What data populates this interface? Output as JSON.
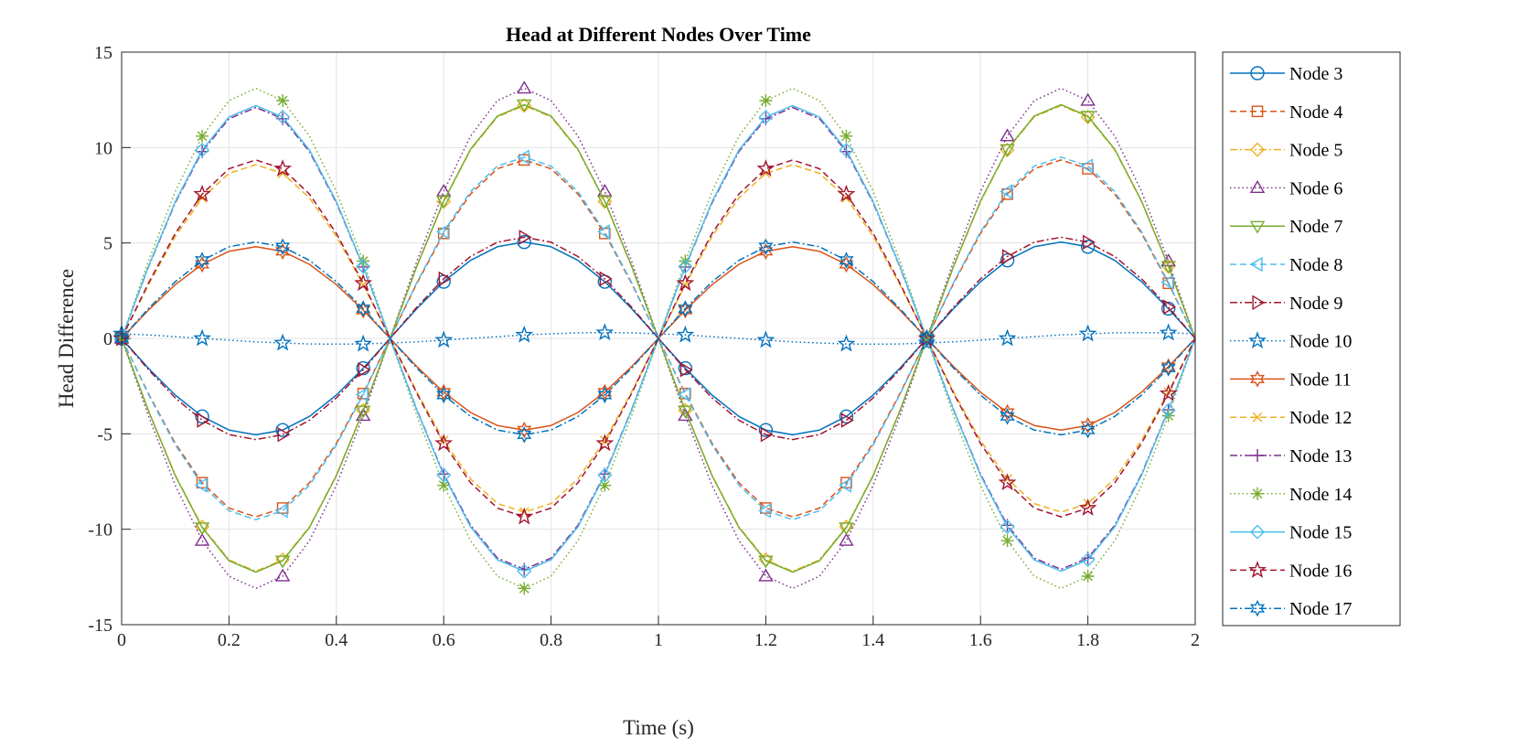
{
  "chart_data": {
    "type": "line",
    "title": "Head at Different Nodes Over Time",
    "xlabel": "Time (s)",
    "ylabel": "Head Difference",
    "xlim": [
      0,
      2
    ],
    "ylim": [
      -15,
      15
    ],
    "xticks": [
      "0",
      "0.2",
      "0.4",
      "0.6",
      "0.8",
      "1",
      "1.2",
      "1.4",
      "1.6",
      "1.8",
      "2"
    ],
    "yticks": [
      "-15",
      "-10",
      "-5",
      "0",
      "5",
      "10",
      "15"
    ],
    "grid": true,
    "legend_position": "outside-right",
    "marker_spacing": 0.15,
    "x": [
      0,
      0.05,
      0.1,
      0.15,
      0.2,
      0.25,
      0.3,
      0.35,
      0.4,
      0.45,
      0.5,
      0.55,
      0.6,
      0.65,
      0.7,
      0.75,
      0.8,
      0.85,
      0.9,
      0.95,
      1,
      1.05,
      1.1,
      1.15,
      1.2,
      1.25,
      1.3,
      1.35,
      1.4,
      1.45,
      1.5,
      1.55,
      1.6,
      1.65,
      1.7,
      1.75,
      1.8,
      1.85,
      1.9,
      1.95,
      2
    ],
    "series": [
      {
        "name": "Node 3",
        "color": "#0072BD",
        "line": "solid",
        "marker": "circle",
        "values": [
          0,
          -1.56,
          -2.97,
          -4.09,
          -4.8,
          -5.05,
          -4.8,
          -4.09,
          -2.97,
          -1.56,
          0,
          1.56,
          2.97,
          4.09,
          4.8,
          5.05,
          4.8,
          4.09,
          2.97,
          1.56,
          0,
          -1.56,
          -2.97,
          -4.09,
          -4.8,
          -5.05,
          -4.8,
          -4.09,
          -2.97,
          -1.56,
          0,
          1.56,
          2.97,
          4.09,
          4.8,
          5.05,
          4.8,
          4.09,
          2.97,
          1.56,
          0
        ]
      },
      {
        "name": "Node 4",
        "color": "#D95319",
        "line": "dashed",
        "marker": "square",
        "values": [
          0,
          -2.89,
          -5.5,
          -7.56,
          -8.89,
          -9.35,
          -8.89,
          -7.56,
          -5.5,
          -2.89,
          0,
          2.89,
          5.5,
          7.56,
          8.89,
          9.35,
          8.89,
          7.56,
          5.5,
          2.89,
          0,
          -2.89,
          -5.5,
          -7.56,
          -8.89,
          -9.35,
          -8.89,
          -7.56,
          -5.5,
          -2.89,
          0,
          2.89,
          5.5,
          7.56,
          8.89,
          9.35,
          8.89,
          7.56,
          5.5,
          2.89,
          0
        ]
      },
      {
        "name": "Node 5",
        "color": "#EDB120",
        "line": "dashdot",
        "marker": "diamond",
        "values": [
          0,
          -3.77,
          -7.17,
          -9.87,
          -11.6,
          -12.2,
          -11.6,
          -9.87,
          -7.17,
          -3.77,
          0,
          3.77,
          7.17,
          9.87,
          11.6,
          12.2,
          11.6,
          9.87,
          7.17,
          3.77,
          0,
          -3.77,
          -7.17,
          -9.87,
          -11.6,
          -12.2,
          -11.6,
          -9.87,
          -7.17,
          -3.77,
          0,
          3.77,
          7.17,
          9.87,
          11.6,
          12.2,
          11.6,
          9.87,
          7.17,
          3.77,
          0
        ]
      },
      {
        "name": "Node 6",
        "color": "#7E2F8E",
        "line": "dotted",
        "marker": "triangle-up",
        "values": [
          0,
          -4.05,
          -7.7,
          -10.6,
          -12.46,
          -13.1,
          -12.46,
          -10.6,
          -7.7,
          -4.05,
          0,
          4.05,
          7.7,
          10.6,
          12.46,
          13.1,
          12.46,
          10.6,
          7.7,
          4.05,
          0,
          -4.05,
          -7.7,
          -10.6,
          -12.46,
          -13.1,
          -12.46,
          -10.6,
          -7.7,
          -4.05,
          0,
          4.05,
          7.7,
          10.6,
          12.46,
          13.1,
          12.46,
          10.6,
          7.7,
          4.05,
          0
        ]
      },
      {
        "name": "Node 7",
        "color": "#77AC30",
        "line": "solid",
        "marker": "triangle-down",
        "values": [
          0,
          -3.79,
          -7.2,
          -9.91,
          -11.65,
          -12.25,
          -11.65,
          -9.91,
          -7.2,
          -3.79,
          0,
          3.79,
          7.2,
          9.91,
          11.65,
          12.25,
          11.65,
          9.91,
          7.2,
          3.79,
          0,
          -3.79,
          -7.2,
          -9.91,
          -11.65,
          -12.25,
          -11.65,
          -9.91,
          -7.2,
          -3.79,
          0,
          3.79,
          7.2,
          9.91,
          11.65,
          12.25,
          11.65,
          9.91,
          7.2,
          3.79,
          0
        ]
      },
      {
        "name": "Node 8",
        "color": "#4DBEEE",
        "line": "dashed",
        "marker": "triangle-left",
        "values": [
          0,
          -2.94,
          -5.59,
          -7.69,
          -9.03,
          -9.5,
          -9.03,
          -7.69,
          -5.59,
          -2.94,
          0,
          2.94,
          5.59,
          7.69,
          9.03,
          9.5,
          9.03,
          7.69,
          5.59,
          2.94,
          0,
          -2.94,
          -5.59,
          -7.69,
          -9.03,
          -9.5,
          -9.03,
          -7.69,
          -5.59,
          -2.94,
          0,
          2.94,
          5.59,
          7.69,
          9.03,
          9.5,
          9.03,
          7.69,
          5.59,
          2.94,
          0
        ]
      },
      {
        "name": "Node 9",
        "color": "#A2142F",
        "line": "dashdot",
        "marker": "triangle-right",
        "values": [
          0,
          -1.64,
          -3.12,
          -4.29,
          -5.04,
          -5.3,
          -5.04,
          -4.29,
          -3.12,
          -1.64,
          0,
          1.64,
          3.12,
          4.29,
          5.04,
          5.3,
          5.04,
          4.29,
          3.12,
          1.64,
          0,
          -1.64,
          -3.12,
          -4.29,
          -5.04,
          -5.3,
          -5.04,
          -4.29,
          -3.12,
          -1.64,
          0,
          1.64,
          3.12,
          4.29,
          5.04,
          5.3,
          5.04,
          4.29,
          3.12,
          1.64,
          0
        ]
      },
      {
        "name": "Node 10",
        "color": "#0072BD",
        "line": "dotted",
        "marker": "pentagram",
        "values": [
          0.24,
          0.18,
          0.09,
          0,
          -0.09,
          -0.18,
          -0.24,
          -0.29,
          -0.3,
          -0.29,
          -0.24,
          -0.18,
          -0.09,
          0,
          0.09,
          0.18,
          0.24,
          0.29,
          0.3,
          0.29,
          0.24,
          0.18,
          0.09,
          0,
          -0.09,
          -0.18,
          -0.24,
          -0.29,
          -0.3,
          -0.29,
          -0.24,
          -0.18,
          -0.09,
          0,
          0.09,
          0.18,
          0.24,
          0.29,
          0.3,
          0.29,
          0.24
        ]
      },
      {
        "name": "Node 11",
        "color": "#D95319",
        "line": "solid",
        "marker": "hexagram",
        "values": [
          0,
          1.48,
          2.82,
          3.88,
          4.56,
          4.8,
          4.56,
          3.88,
          2.82,
          1.48,
          0,
          -1.48,
          -2.82,
          -3.88,
          -4.56,
          -4.8,
          -4.56,
          -3.88,
          -2.82,
          -1.48,
          0,
          1.48,
          2.82,
          3.88,
          4.56,
          4.8,
          4.56,
          3.88,
          2.82,
          1.48,
          0,
          -1.48,
          -2.82,
          -3.88,
          -4.56,
          -4.8,
          -4.56,
          -3.88,
          -2.82,
          -1.48,
          0
        ]
      },
      {
        "name": "Node 12",
        "color": "#EDB120",
        "line": "dashed",
        "marker": "x",
        "values": [
          0,
          2.81,
          5.35,
          7.36,
          8.65,
          9.1,
          8.65,
          7.36,
          5.35,
          2.81,
          0,
          -2.81,
          -5.35,
          -7.36,
          -8.65,
          -9.1,
          -8.65,
          -7.36,
          -5.35,
          -2.81,
          0,
          2.81,
          5.35,
          7.36,
          8.65,
          9.1,
          8.65,
          7.36,
          5.35,
          2.81,
          0,
          -2.81,
          -5.35,
          -7.36,
          -8.65,
          -9.1,
          -8.65,
          -7.36,
          -5.35,
          -2.81,
          0
        ]
      },
      {
        "name": "Node 13",
        "color": "#7E2F8E",
        "line": "dashdot",
        "marker": "plus",
        "values": [
          0,
          3.74,
          7.11,
          9.79,
          11.51,
          12.1,
          11.51,
          9.79,
          7.11,
          3.74,
          0,
          -3.74,
          -7.11,
          -9.79,
          -11.51,
          -12.1,
          -11.51,
          -9.79,
          -7.11,
          -3.74,
          0,
          3.74,
          7.11,
          9.79,
          11.51,
          12.1,
          11.51,
          9.79,
          7.11,
          3.74,
          0,
          -3.74,
          -7.11,
          -9.79,
          -11.51,
          -12.1,
          -11.51,
          -9.79,
          -7.11,
          -3.74,
          0
        ]
      },
      {
        "name": "Node 14",
        "color": "#77AC30",
        "line": "dotted",
        "marker": "asterisk",
        "values": [
          0,
          4.05,
          7.7,
          10.6,
          12.46,
          13.1,
          12.46,
          10.6,
          7.7,
          4.05,
          0,
          -4.05,
          -7.7,
          -10.6,
          -12.46,
          -13.1,
          -12.46,
          -10.6,
          -7.7,
          -4.05,
          0,
          4.05,
          7.7,
          10.6,
          12.46,
          13.1,
          12.46,
          10.6,
          7.7,
          4.05,
          0,
          -4.05,
          -7.7,
          -10.6,
          -12.46,
          -13.1,
          -12.46,
          -10.6,
          -7.7,
          -4.05,
          0
        ]
      },
      {
        "name": "Node 15",
        "color": "#4DBEEE",
        "line": "solid",
        "marker": "diamond",
        "values": [
          0,
          3.77,
          7.17,
          9.87,
          11.6,
          12.2,
          11.6,
          9.87,
          7.17,
          3.77,
          0,
          -3.77,
          -7.17,
          -9.87,
          -11.6,
          -12.2,
          -11.6,
          -9.87,
          -7.17,
          -3.77,
          0,
          3.77,
          7.17,
          9.87,
          11.6,
          12.2,
          11.6,
          9.87,
          7.17,
          3.77,
          0,
          -3.77,
          -7.17,
          -9.87,
          -11.6,
          -12.2,
          -11.6,
          -9.87,
          -7.17,
          -3.77,
          0
        ]
      },
      {
        "name": "Node 16",
        "color": "#A2142F",
        "line": "dashed",
        "marker": "pentagram",
        "values": [
          0,
          2.89,
          5.5,
          7.56,
          8.89,
          9.35,
          8.89,
          7.56,
          5.5,
          2.89,
          0,
          -2.89,
          -5.5,
          -7.56,
          -8.89,
          -9.35,
          -8.89,
          -7.56,
          -5.5,
          -2.89,
          0,
          2.89,
          5.5,
          7.56,
          8.89,
          9.35,
          8.89,
          7.56,
          5.5,
          2.89,
          0,
          -2.89,
          -5.5,
          -7.56,
          -8.89,
          -9.35,
          -8.89,
          -7.56,
          -5.5,
          -2.89,
          0
        ]
      },
      {
        "name": "Node 17",
        "color": "#0072BD",
        "line": "dashdot",
        "marker": "hexagram",
        "values": [
          0,
          1.56,
          2.97,
          4.09,
          4.8,
          5.05,
          4.8,
          4.09,
          2.97,
          1.56,
          0,
          -1.56,
          -2.97,
          -4.09,
          -4.8,
          -5.05,
          -4.8,
          -4.09,
          -2.97,
          -1.56,
          0,
          1.56,
          2.97,
          4.09,
          4.8,
          5.05,
          4.8,
          4.09,
          2.97,
          1.56,
          0,
          -1.56,
          -2.97,
          -4.09,
          -4.8,
          -5.05,
          -4.8,
          -4.09,
          -2.97,
          -1.56,
          0
        ]
      }
    ]
  }
}
